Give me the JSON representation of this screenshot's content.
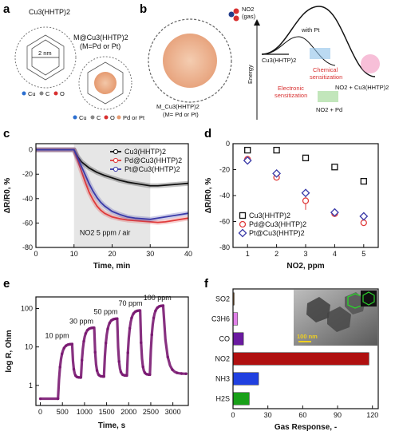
{
  "panel_labels": [
    "a",
    "b",
    "c",
    "d",
    "e",
    "f"
  ],
  "panel_a": {
    "top_formula": "Cu3(HHTP)2",
    "pore_size": "2 nm",
    "top_legend": [
      "Cu",
      "C",
      "O"
    ],
    "bottom_formula": "M@Cu3(HHTP)2",
    "bottom_formula_note": "(M=Pd or Pt)",
    "bottom_legend": [
      "Cu",
      "C",
      "O",
      "Pd or Pt"
    ]
  },
  "panel_b": {
    "gas_label": "NO2",
    "gas_note": "(gas)",
    "particle_formula": "M_Cu3(HHTP)2",
    "particle_note": "(M= Pd or Pt)",
    "energy_axis": "Energy",
    "with_pt": "with Pt",
    "mof_label": "Cu3(HHTP)2",
    "chemical": "Chemical",
    "chemical2": "sensitization",
    "electronic": "Electronic",
    "electronic2": "sensitization",
    "product_pd": "NO2 + Pd",
    "product_end": "NO2 + Cu3(HHTP)2"
  },
  "chart_data": [
    {
      "type": "line",
      "panel": "c",
      "xlabel": "Time, min",
      "ylabel": "ΔR/R0, %",
      "xlim": [
        0,
        40
      ],
      "ylim": [
        -80,
        5
      ],
      "xticks": [
        0,
        10,
        20,
        30,
        40
      ],
      "yticks": [
        0,
        -20,
        -40,
        -60,
        -80
      ],
      "legend_position": "top-right",
      "annotation": "NO2 5 ppm / air",
      "shaded_range": [
        10,
        30
      ],
      "series": [
        {
          "name": "Cu3(HHTP)2",
          "color": "#111111",
          "x": [
            0,
            5,
            10,
            11,
            12,
            14,
            16,
            18,
            20,
            22,
            24,
            26,
            28,
            30,
            32,
            34,
            36,
            38,
            40
          ],
          "y": [
            0,
            0,
            0,
            -6,
            -10,
            -15,
            -18.5,
            -21,
            -23,
            -25,
            -26.5,
            -27.5,
            -28.5,
            -29.5,
            -29.5,
            -29,
            -28.5,
            -28,
            -27.5
          ]
        },
        {
          "name": "Pd@Cu3(HHTP)2",
          "color": "#e03a3a",
          "x": [
            0,
            5,
            10,
            11,
            12,
            13,
            14,
            15,
            16,
            17,
            18,
            20,
            22,
            24,
            26,
            28,
            30,
            32,
            34,
            36,
            38,
            40
          ],
          "y": [
            0,
            0,
            0,
            -9,
            -18,
            -27,
            -35,
            -41,
            -46,
            -49.5,
            -52,
            -55,
            -56.5,
            -57.5,
            -58,
            -58.5,
            -59,
            -59.5,
            -59,
            -58,
            -57,
            -56
          ]
        },
        {
          "name": "Pt@Cu3(HHTP)2",
          "color": "#3a3aa8",
          "x": [
            0,
            5,
            10,
            11,
            12,
            13,
            14,
            15,
            16,
            17,
            18,
            20,
            22,
            24,
            26,
            28,
            30,
            32,
            34,
            36,
            38,
            40
          ],
          "y": [
            0,
            0,
            0,
            -7,
            -14,
            -21,
            -28,
            -34,
            -39,
            -43,
            -46,
            -50.5,
            -53,
            -55,
            -56,
            -56.5,
            -57,
            -56,
            -55,
            -54,
            -53,
            -52
          ]
        }
      ]
    },
    {
      "type": "scatter",
      "panel": "d",
      "xlabel": "NO2, ppm",
      "ylabel": "ΔR/R0, %",
      "xlim": [
        0.5,
        5.5
      ],
      "ylim": [
        -80,
        0
      ],
      "xticks": [
        1,
        2,
        3,
        4,
        5
      ],
      "yticks": [
        0,
        -20,
        -40,
        -60,
        -80
      ],
      "legend_position": "bottom-left",
      "series": [
        {
          "name": "Cu3(HHTP)2",
          "color": "#111111",
          "marker": "square",
          "x": [
            1,
            2,
            3,
            4,
            5
          ],
          "y": [
            -5,
            -5,
            -11,
            -18,
            -29
          ],
          "err": [
            1,
            1,
            1,
            1,
            2
          ]
        },
        {
          "name": "Pd@Cu3(HHTP)2",
          "color": "#e03a3a",
          "marker": "circle",
          "x": [
            1,
            2,
            3,
            4,
            5
          ],
          "y": [
            -12,
            -26,
            -44,
            -54,
            -61
          ],
          "err": [
            1,
            2,
            7,
            1,
            2
          ]
        },
        {
          "name": "Pt@Cu3(HHTP)2",
          "color": "#3a3aa8",
          "marker": "diamond",
          "x": [
            1,
            2,
            3,
            4,
            5
          ],
          "y": [
            -13,
            -23,
            -38,
            -53,
            -56
          ],
          "err": [
            1,
            1,
            3,
            1,
            3
          ]
        }
      ]
    },
    {
      "type": "line",
      "panel": "e",
      "xlabel": "Time, s",
      "ylabel": "log R, Ohm",
      "scale_y": "log",
      "xlim": [
        -100,
        3350
      ],
      "ylim": [
        0.3,
        200
      ],
      "xticks": [
        0,
        500,
        1000,
        1500,
        2000,
        2500,
        3000
      ],
      "yticks": [
        1,
        10,
        100
      ],
      "color": "#7a1a72",
      "annotations": [
        {
          "text": "10 ppm",
          "x": 380,
          "y": 17
        },
        {
          "text": "30 ppm",
          "x": 930,
          "y": 40
        },
        {
          "text": "50 ppm",
          "x": 1480,
          "y": 72
        },
        {
          "text": "70 ppm",
          "x": 2040,
          "y": 118
        },
        {
          "text": "100 ppm",
          "x": 2650,
          "y": 165
        }
      ],
      "cycles": [
        {
          "on": 400,
          "off": 720,
          "peak": 12
        },
        {
          "on": 920,
          "off": 1220,
          "peak": 32
        },
        {
          "on": 1440,
          "off": 1740,
          "peak": 55
        },
        {
          "on": 1960,
          "off": 2260,
          "peak": 90
        },
        {
          "on": 2480,
          "off": 2780,
          "peak": 120
        }
      ],
      "baseline": [
        0.45,
        1.6,
        1.7,
        1.8,
        1.9,
        2.0
      ]
    },
    {
      "type": "bar",
      "panel": "f",
      "orientation": "horizontal",
      "xlabel": "Gas Response, -",
      "xlim": [
        0,
        125
      ],
      "xticks": [
        0,
        30,
        60,
        90,
        120
      ],
      "categories": [
        "SO2",
        "C3H6",
        "CO",
        "NO2",
        "NH3",
        "H2S"
      ],
      "values": [
        1,
        4,
        9,
        117,
        22,
        14
      ],
      "colors": [
        "#8a5a2a",
        "#e080e8",
        "#6a1aa0",
        "#b01010",
        "#2040e0",
        "#18a018"
      ],
      "inset_scalebar": "100 nm"
    }
  ]
}
